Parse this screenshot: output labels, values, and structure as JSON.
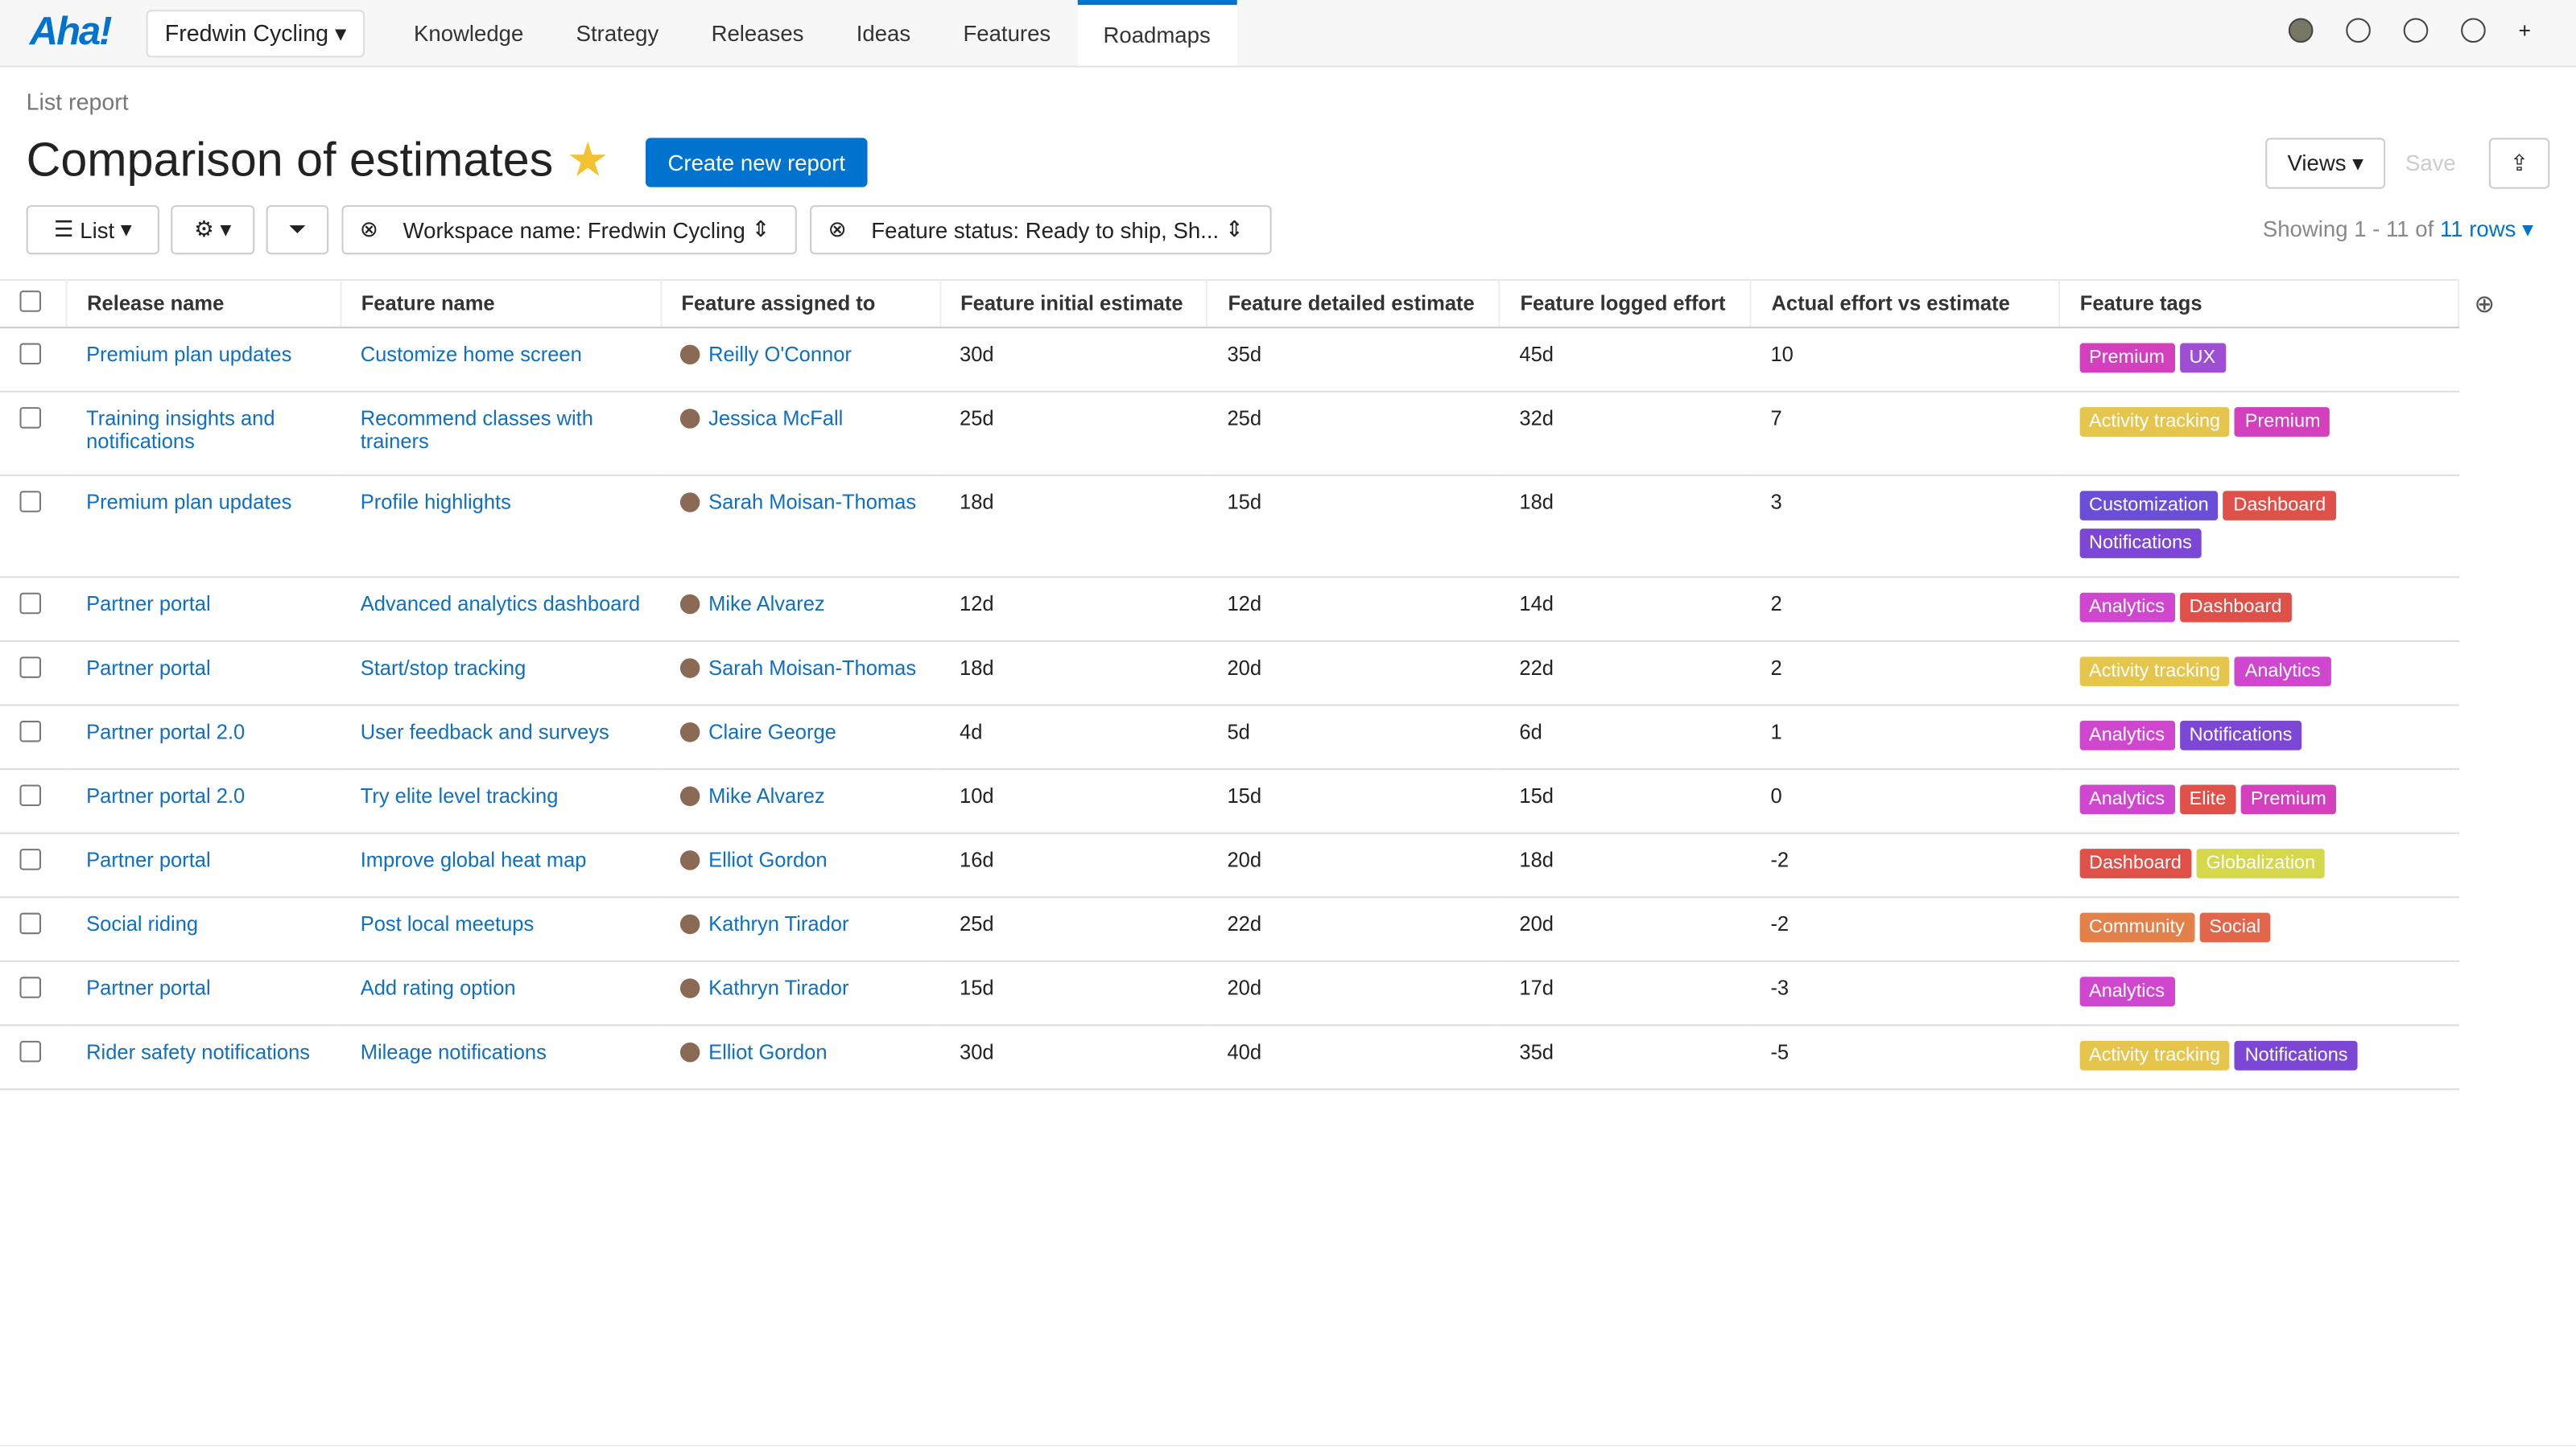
{
  "nav": {
    "logo": "Aha!",
    "workspace": "Fredwin Cycling",
    "tabs": [
      "Knowledge",
      "Strategy",
      "Releases",
      "Ideas",
      "Features",
      "Roadmaps"
    ],
    "active_tab": 5
  },
  "header": {
    "kicker": "List report",
    "title": "Comparison of estimates",
    "create_button": "Create new report",
    "views_button": "Views",
    "save_button": "Save"
  },
  "toolbar": {
    "view_button": "List",
    "filters": [
      "Workspace name: Fredwin Cycling",
      "Feature status: Ready to ship, Sh..."
    ],
    "showing": "Showing 1 - 11 of",
    "rows_link": "11 rows"
  },
  "table": {
    "columns": [
      "Release name",
      "Feature name",
      "Feature assigned to",
      "Feature initial estimate",
      "Feature detailed estimate",
      "Feature logged effort",
      "Actual effort vs estimate",
      "Feature tags"
    ],
    "rows": [
      {
        "release": "Premium plan updates",
        "feature": "Customize home screen",
        "assignee": "Reilly O'Connor",
        "initial": "30d",
        "detailed": "35d",
        "logged": "45d",
        "actual": 10,
        "tags": [
          {
            "label": "Premium",
            "color": "#d43fbe"
          },
          {
            "label": "UX",
            "color": "#9d4ed3"
          }
        ]
      },
      {
        "release": "Training insights and notifications",
        "feature": "Recommend classes with trainers",
        "assignee": "Jessica McFall",
        "initial": "25d",
        "detailed": "25d",
        "logged": "32d",
        "actual": 7,
        "tags": [
          {
            "label": "Activity tracking",
            "color": "#e5c54c"
          },
          {
            "label": "Premium",
            "color": "#d43fbe"
          }
        ]
      },
      {
        "release": "Premium plan updates",
        "feature": "Profile highlights",
        "assignee": "Sarah Moisan-Thomas",
        "initial": "18d",
        "detailed": "15d",
        "logged": "18d",
        "actual": 3,
        "tags": [
          {
            "label": "Customization",
            "color": "#6a4ed8"
          },
          {
            "label": "Dashboard",
            "color": "#df5049"
          },
          {
            "label": "Notifications",
            "color": "#7d47d6"
          }
        ]
      },
      {
        "release": "Partner portal",
        "feature": "Advanced analytics dashboard",
        "assignee": "Mike Alvarez",
        "initial": "12d",
        "detailed": "12d",
        "logged": "14d",
        "actual": 2,
        "tags": [
          {
            "label": "Analytics",
            "color": "#cf47cf"
          },
          {
            "label": "Dashboard",
            "color": "#df5049"
          }
        ]
      },
      {
        "release": "Partner portal",
        "feature": "Start/stop tracking",
        "assignee": "Sarah Moisan-Thomas",
        "initial": "18d",
        "detailed": "20d",
        "logged": "22d",
        "actual": 2,
        "tags": [
          {
            "label": "Activity tracking",
            "color": "#e5c54c"
          },
          {
            "label": "Analytics",
            "color": "#cf47cf"
          }
        ]
      },
      {
        "release": "Partner portal 2.0",
        "feature": "User feedback and surveys",
        "assignee": "Claire George",
        "initial": "4d",
        "detailed": "5d",
        "logged": "6d",
        "actual": 1,
        "tags": [
          {
            "label": "Analytics",
            "color": "#cf47cf"
          },
          {
            "label": "Notifications",
            "color": "#7d47d6"
          }
        ]
      },
      {
        "release": "Partner portal 2.0",
        "feature": "Try elite level tracking",
        "assignee": "Mike Alvarez",
        "initial": "10d",
        "detailed": "15d",
        "logged": "15d",
        "actual": 0,
        "tags": [
          {
            "label": "Analytics",
            "color": "#cf47cf"
          },
          {
            "label": "Elite",
            "color": "#df5049"
          },
          {
            "label": "Premium",
            "color": "#d43fbe"
          }
        ]
      },
      {
        "release": "Partner portal",
        "feature": "Improve global heat map",
        "assignee": "Elliot Gordon",
        "initial": "16d",
        "detailed": "20d",
        "logged": "18d",
        "actual": -2,
        "tags": [
          {
            "label": "Dashboard",
            "color": "#df5049"
          },
          {
            "label": "Globalization",
            "color": "#d6d84c"
          }
        ]
      },
      {
        "release": "Social riding",
        "feature": "Post local meetups",
        "assignee": "Kathryn Tirador",
        "initial": "25d",
        "detailed": "22d",
        "logged": "20d",
        "actual": -2,
        "tags": [
          {
            "label": "Community",
            "color": "#e4814a"
          },
          {
            "label": "Social",
            "color": "#e2674a"
          }
        ]
      },
      {
        "release": "Partner portal",
        "feature": "Add rating option",
        "assignee": "Kathryn Tirador",
        "initial": "15d",
        "detailed": "20d",
        "logged": "17d",
        "actual": -3,
        "tags": [
          {
            "label": "Analytics",
            "color": "#cf47cf"
          }
        ]
      },
      {
        "release": "Rider safety notifications",
        "feature": "Mileage notifications",
        "assignee": "Elliot Gordon",
        "initial": "30d",
        "detailed": "40d",
        "logged": "35d",
        "actual": -5,
        "tags": [
          {
            "label": "Activity tracking",
            "color": "#e5c54c"
          },
          {
            "label": "Notifications",
            "color": "#7d47d6"
          }
        ]
      }
    ]
  }
}
